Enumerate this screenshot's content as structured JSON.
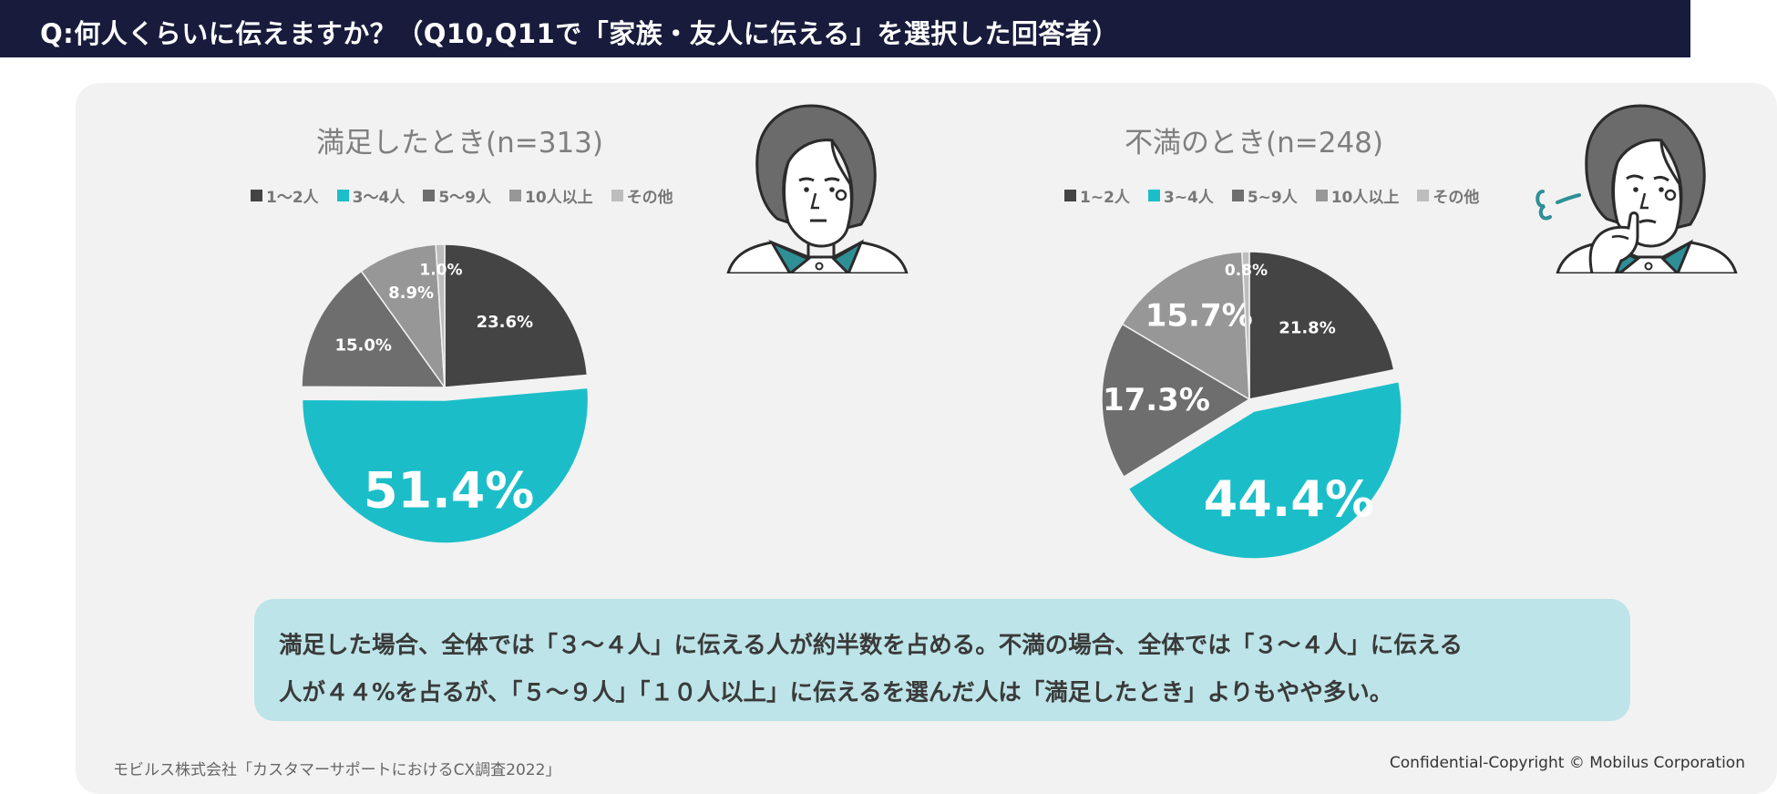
{
  "header": {
    "title": "Q:何人くらいに伝えますか？（Q10,Q11で「家族・友人に伝える」を選択した回答者）"
  },
  "colors": {
    "header_bg": "#181b3b",
    "accent": "#1bbec8",
    "c1": "#444444",
    "c3": "#6e6e6e",
    "c4": "#979797",
    "c5": "#bdbdbd"
  },
  "legend_labels": {
    "left": [
      "1〜2人",
      "3〜4人",
      "5〜9人",
      "10人以上",
      "その他"
    ],
    "right": [
      "1~2人",
      "3~4人",
      "5~9人",
      "10人以上",
      "その他"
    ]
  },
  "chart_data": [
    {
      "type": "pie",
      "title": "満足したとき(n=313)",
      "legend_position": "top",
      "categories": [
        "1〜2人",
        "3〜4人",
        "5〜9人",
        "10人以上",
        "その他"
      ],
      "values": [
        23.6,
        51.4,
        15.0,
        8.9,
        1.0
      ],
      "labels": [
        "23.6%",
        "51.4%",
        "15.0%",
        "8.9%",
        "1.0%"
      ],
      "exploded": [
        false,
        true,
        false,
        false,
        false
      ]
    },
    {
      "type": "pie",
      "title": "不満のとき(n=248)",
      "legend_position": "top",
      "categories": [
        "1~2人",
        "3~4人",
        "5~9人",
        "10人以上",
        "その他"
      ],
      "values": [
        21.8,
        44.4,
        17.3,
        15.7,
        0.8
      ],
      "labels": [
        "21.8%",
        "44.4%",
        "17.3%",
        "15.7%",
        "0.8%"
      ],
      "exploded": [
        false,
        true,
        false,
        false,
        false
      ]
    }
  ],
  "summary": {
    "line1": "満足した場合、全体では「３～４人」に伝える人が約半数を占める。不満の場合、全体では「３～４人」に伝える",
    "line2": "人が４４%を占るが、「５～９人」「１０人以上」に伝えるを選んだ人は「満足したとき」よりもやや多い。"
  },
  "footer": {
    "source": "モビルス株式会社「カスタマーサポートにおけるCX調査2022」",
    "copyright": "Confidential-Copyright © Mobilus Corporation"
  },
  "icons": [
    "person-satisfied-icon",
    "person-thinking-icon"
  ]
}
